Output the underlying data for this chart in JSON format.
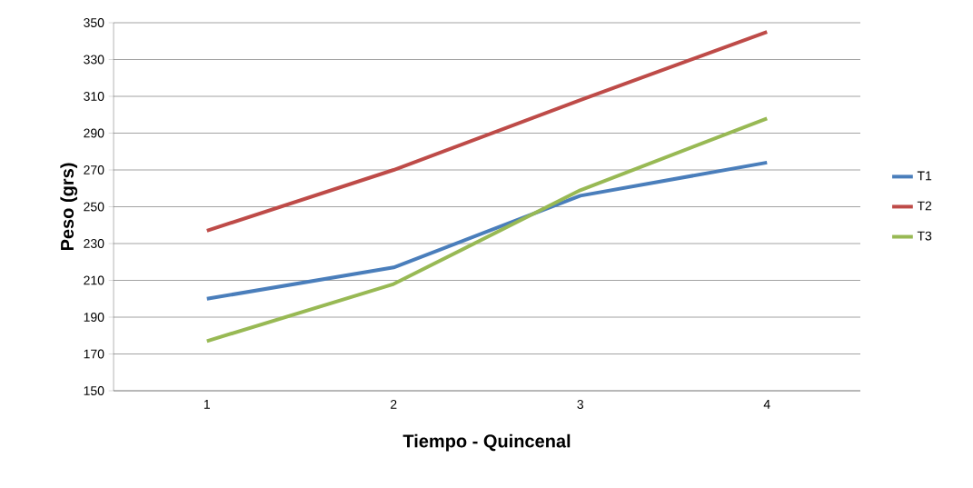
{
  "chart_data": {
    "type": "line",
    "xlabel": "Tiempo - Quincenal",
    "ylabel": "Peso (grs)",
    "categories": [
      "1",
      "2",
      "3",
      "4"
    ],
    "series": [
      {
        "name": "T1",
        "color": "#4a7ebb",
        "values": [
          200,
          217,
          256,
          274
        ]
      },
      {
        "name": "T2",
        "color": "#be4b48",
        "values": [
          237,
          270,
          308,
          345
        ]
      },
      {
        "name": "T3",
        "color": "#98b954",
        "values": [
          177,
          208,
          259,
          298
        ]
      }
    ],
    "ylim": [
      150,
      350
    ],
    "yticks": [
      150,
      170,
      190,
      210,
      230,
      250,
      270,
      290,
      310,
      330,
      350
    ],
    "grid": "y",
    "legend": "right"
  }
}
